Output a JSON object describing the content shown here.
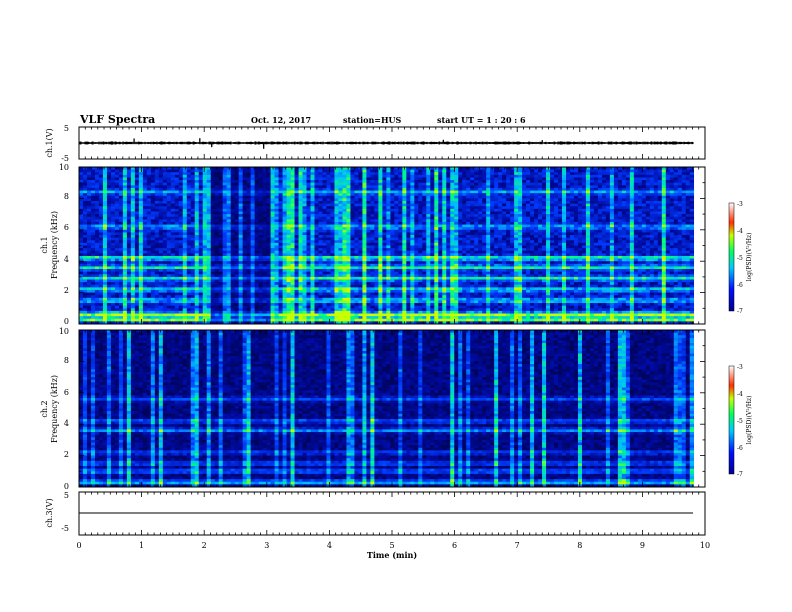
{
  "header": {
    "title": "VLF Spectra",
    "date": "Oct. 12, 2017",
    "station": "station=HUS",
    "start": "start  UT =   1 : 20 : 6"
  },
  "chart_data": [
    {
      "type": "line",
      "id": "ch1-waveform",
      "ylabel": "ch.1(V)",
      "ylim": [
        -5,
        5
      ],
      "yticks": [
        "5",
        "-5"
      ],
      "xlim": [
        0,
        10
      ],
      "description_level": 0,
      "amplitude_band": [
        -0.5,
        0.5
      ],
      "spikes": [
        {
          "x": 0.88,
          "y": 1.4
        },
        {
          "x": 1.93,
          "y": 1.5
        },
        {
          "x": 2.12,
          "y": -1.3
        },
        {
          "x": 2.95,
          "y": -1.8
        },
        {
          "x": 5.82,
          "y": 1.0
        },
        {
          "x": 7.4,
          "y": 0.9
        }
      ]
    },
    {
      "type": "heatmap",
      "id": "ch1-spectrogram",
      "ylabel_line1": "ch.1",
      "ylabel_line2": "Frequency (kHz)",
      "ylim": [
        0,
        10
      ],
      "yticks": [
        "0",
        "2",
        "4",
        "6",
        "8",
        "10"
      ],
      "xlim": [
        0,
        9.82
      ],
      "bands_khz": [
        {
          "f": 0.3,
          "level": 0.95
        },
        {
          "f": 0.6,
          "level": 0.9
        },
        {
          "f": 1.5,
          "level": 0.45
        },
        {
          "f": 2.2,
          "level": 0.5
        },
        {
          "f": 2.9,
          "level": 0.55
        },
        {
          "f": 3.6,
          "level": 0.55
        },
        {
          "f": 4.2,
          "level": 0.65
        },
        {
          "f": 6.2,
          "level": 0.35
        },
        {
          "f": 8.4,
          "level": 0.35
        }
      ],
      "colorbar": {
        "label": "log(PSD)(V²/Hz)",
        "ticks": [
          "-3",
          "-4",
          "-5",
          "-6",
          "-7"
        ],
        "range": [
          -7,
          -3
        ]
      }
    },
    {
      "type": "heatmap",
      "id": "ch2-spectrogram",
      "ylabel_line1": "ch.2",
      "ylabel_line2": "Frequency (kHz)",
      "ylim": [
        0,
        10
      ],
      "yticks": [
        "0",
        "2",
        "4",
        "6",
        "8",
        "10"
      ],
      "xlim": [
        0,
        9.82
      ],
      "bands_khz": [
        {
          "f": 0.3,
          "level": 0.6
        },
        {
          "f": 1.0,
          "level": 0.4
        },
        {
          "f": 1.5,
          "level": 0.35
        },
        {
          "f": 2.2,
          "level": 0.3
        },
        {
          "f": 3.6,
          "level": 0.45
        },
        {
          "f": 4.2,
          "level": 0.35
        },
        {
          "f": 5.6,
          "level": 0.3
        }
      ],
      "colorbar": {
        "label": "log(PSD)(V²/Hz)",
        "ticks": [
          "-3",
          "-4",
          "-5",
          "-6",
          "-7"
        ],
        "range": [
          -7,
          -3
        ]
      }
    },
    {
      "type": "line",
      "id": "ch3-waveform",
      "ylabel": "ch.3(V)",
      "ylim": [
        -5,
        5
      ],
      "yticks": [
        "5",
        "-5"
      ],
      "xlim": [
        0,
        10
      ],
      "level": 0
    }
  ],
  "xaxis": {
    "label": "Time  (min)",
    "ticks": [
      "0",
      "1",
      "2",
      "3",
      "4",
      "5",
      "6",
      "7",
      "8",
      "9",
      "10"
    ]
  }
}
